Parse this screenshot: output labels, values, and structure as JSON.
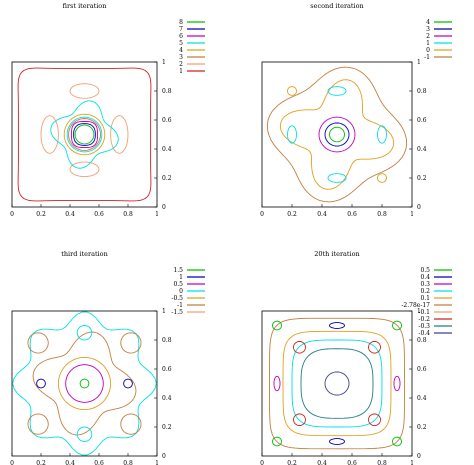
{
  "chart_data": [
    {
      "type": "contour",
      "title": "first iteration",
      "xlim": [
        0,
        1
      ],
      "ylim": [
        0,
        1
      ],
      "x_ticks": [
        "0",
        "0.2",
        "0.4",
        "0.6",
        "0.8",
        "1"
      ],
      "y_ticks": [
        "0",
        "0.2",
        "0.4",
        "0.6",
        "0.8",
        "1"
      ],
      "legend_position": "top-right",
      "levels": [
        {
          "label": "8",
          "color": "#00c000"
        },
        {
          "label": "7",
          "color": "#0000c0"
        },
        {
          "label": "6",
          "color": "#c000c0"
        },
        {
          "label": "5",
          "color": "#00e0e0"
        },
        {
          "label": "4",
          "color": "#e0a020"
        },
        {
          "label": "3",
          "color": "#c08040"
        },
        {
          "label": "2",
          "color": "#f0a070"
        },
        {
          "label": "1",
          "color": "#d02020"
        }
      ]
    },
    {
      "type": "contour",
      "title": "second iteration",
      "xlim": [
        0,
        1
      ],
      "ylim": [
        0,
        1
      ],
      "x_ticks": [
        "0",
        "0.2",
        "0.4",
        "0.6",
        "0.8",
        "1"
      ],
      "y_ticks": [
        "0",
        "0.2",
        "0.4",
        "0.6",
        "0.8",
        "1"
      ],
      "legend_position": "top-right",
      "levels": [
        {
          "label": "4",
          "color": "#00c000"
        },
        {
          "label": "3",
          "color": "#0000c0"
        },
        {
          "label": "2",
          "color": "#c000c0"
        },
        {
          "label": "1",
          "color": "#00e0e0"
        },
        {
          "label": "0",
          "color": "#e0a020"
        },
        {
          "label": "-1",
          "color": "#c08040"
        }
      ]
    },
    {
      "type": "contour",
      "title": "third iteration",
      "xlim": [
        0,
        1
      ],
      "ylim": [
        0,
        1
      ],
      "x_ticks": [
        "0",
        "0.2",
        "0.4",
        "0.6",
        "0.8",
        "1"
      ],
      "y_ticks": [
        "0",
        "0.2",
        "0.4",
        "0.6",
        "0.8",
        "1"
      ],
      "legend_position": "top-right",
      "levels": [
        {
          "label": "1.5",
          "color": "#00c000"
        },
        {
          "label": "1",
          "color": "#0000c0"
        },
        {
          "label": "0.5",
          "color": "#c000c0"
        },
        {
          "label": "0",
          "color": "#00e0e0"
        },
        {
          "label": "-0.5",
          "color": "#e0a020"
        },
        {
          "label": "-1",
          "color": "#c08040"
        },
        {
          "label": "-1.5",
          "color": "#f0a070"
        }
      ]
    },
    {
      "type": "contour",
      "title": "20th iteration",
      "xlim": [
        0,
        1
      ],
      "ylim": [
        0,
        1
      ],
      "x_ticks": [
        "0",
        "0.2",
        "0.4",
        "0.6",
        "0.8",
        "1"
      ],
      "y_ticks": [
        "0",
        "0.2",
        "0.4",
        "0.6",
        "0.8",
        "1"
      ],
      "legend_position": "top-right",
      "levels": [
        {
          "label": "0.5",
          "color": "#00c000"
        },
        {
          "label": "0.4",
          "color": "#0000c0"
        },
        {
          "label": "0.3",
          "color": "#c000c0"
        },
        {
          "label": "0.2",
          "color": "#00e0e0"
        },
        {
          "label": "0.1",
          "color": "#e0a020"
        },
        {
          "label": "-2.78e-17",
          "color": "#c08040"
        },
        {
          "label": "-0.1",
          "color": "#f0a070"
        },
        {
          "label": "-0.2",
          "color": "#d02020"
        },
        {
          "label": "-0.3",
          "color": "#208080"
        },
        {
          "label": "-0.4",
          "color": "#404090"
        }
      ]
    }
  ]
}
